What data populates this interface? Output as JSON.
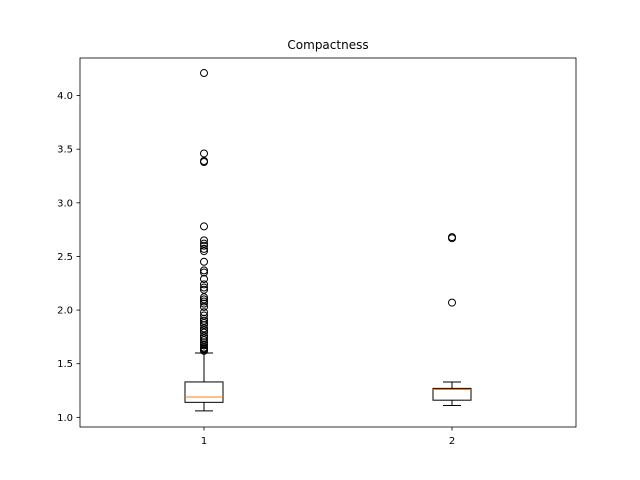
{
  "chart_data": {
    "type": "boxplot",
    "title": "Compactness",
    "xlabel": "",
    "ylabel": "",
    "categories": [
      "1",
      "2"
    ],
    "ylim": [
      0.91,
      4.35
    ],
    "yticks": [
      1.0,
      1.5,
      2.0,
      2.5,
      3.0,
      3.5,
      4.0
    ],
    "ytick_labels": [
      "1.0",
      "1.5",
      "2.0",
      "2.5",
      "3.0",
      "3.5",
      "4.0"
    ],
    "grid": false,
    "colors": {
      "box": "#000000",
      "median": "#ff7f0e",
      "flier": "#000000"
    },
    "boxes": [
      {
        "label": "1",
        "whisker_low": 1.06,
        "q1": 1.14,
        "median": 1.19,
        "q3": 1.33,
        "whisker_high": 1.6,
        "fliers": [
          4.21,
          3.46,
          3.39,
          3.38,
          2.78,
          2.65,
          2.62,
          2.6,
          2.57,
          2.55,
          2.45,
          2.37,
          2.35,
          2.29,
          2.24,
          2.21,
          2.19,
          2.12,
          2.1,
          2.08,
          2.06,
          2.03,
          1.98,
          1.95,
          1.92,
          1.9,
          1.88,
          1.86,
          1.83,
          1.81,
          1.79,
          1.76,
          1.74,
          1.72,
          1.7,
          1.68,
          1.67,
          1.65,
          1.64,
          1.63,
          1.62
        ]
      },
      {
        "label": "2",
        "whisker_low": 1.11,
        "q1": 1.16,
        "median": 1.26,
        "q3": 1.27,
        "whisker_high": 1.33,
        "fliers": [
          2.68,
          2.67,
          2.07
        ]
      }
    ]
  }
}
